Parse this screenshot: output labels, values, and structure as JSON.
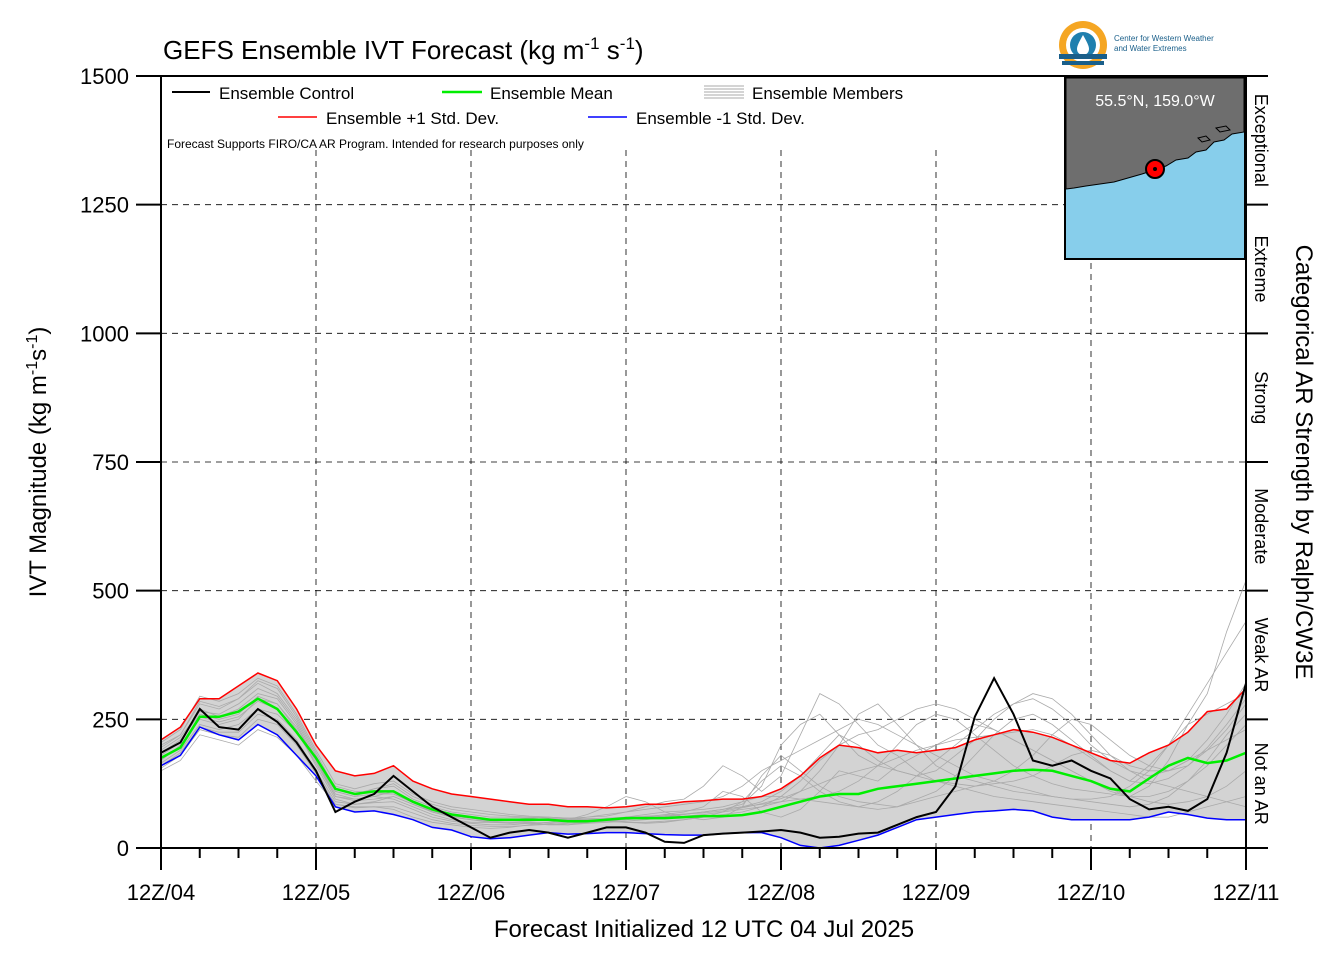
{
  "chart_data": {
    "type": "line",
    "title": "GEFS Ensemble IVT Forecast (kg m",
    "title_sup1": "-1",
    "title_mid": " s",
    "title_sup2": "-1",
    "title_end": ")",
    "ylabel": "IVT Magnitude (kg m",
    "ylabel_sup1": "-1",
    "ylabel_mid": "s",
    "ylabel_sup2": "-1",
    "ylabel_end": ")",
    "xlabel": "Forecast Initialized 12 UTC 04 Jul 2025",
    "right_label": "Categorical AR Strength by Ralph/CW3E",
    "note": "Forecast Supports FIRO/CA AR Program. Intended for research purposes only",
    "ylim": [
      0,
      1500
    ],
    "yticks": [
      0,
      250,
      500,
      750,
      1000,
      1250,
      1500
    ],
    "xlim": [
      0,
      168
    ],
    "xticks": [
      {
        "h": 0,
        "label": "12Z/04"
      },
      {
        "h": 24,
        "label": "12Z/05"
      },
      {
        "h": 48,
        "label": "12Z/06"
      },
      {
        "h": 72,
        "label": "12Z/07"
      },
      {
        "h": 96,
        "label": "12Z/08"
      },
      {
        "h": 120,
        "label": "12Z/09"
      },
      {
        "h": 144,
        "label": "12Z/10"
      },
      {
        "h": 168,
        "label": "12Z/11"
      }
    ],
    "categories_right": [
      {
        "label": "Not an AR",
        "range": [
          0,
          250
        ]
      },
      {
        "label": "Weak AR",
        "range": [
          250,
          500
        ]
      },
      {
        "label": "Moderate",
        "range": [
          500,
          750
        ]
      },
      {
        "label": "Strong",
        "range": [
          750,
          1000
        ]
      },
      {
        "label": "Extreme",
        "range": [
          1000,
          1250
        ]
      },
      {
        "label": "Exceptional",
        "range": [
          1250,
          1500
        ]
      }
    ],
    "legend": {
      "control": "Ensemble Control",
      "mean": "Ensemble Mean",
      "members": "Ensemble Members",
      "plus": "Ensemble +1 Std. Dev.",
      "minus": "Ensemble -1 Std. Dev."
    },
    "colors": {
      "control": "#000000",
      "mean": "#00ee00",
      "members": "#aaaaaa",
      "plus": "#ff0000",
      "minus": "#0000ff",
      "band": "#d3d3d3",
      "ocean": "#87ceeb",
      "land": "#6e6e6e",
      "marker": "#ff0000"
    },
    "location_label": "55.5°N, 159.0°W",
    "logo_text_line1": "Center for Western Weather",
    "logo_text_line2": "and Water Extremes",
    "x": [
      0,
      3,
      6,
      9,
      12,
      15,
      18,
      21,
      24,
      27,
      30,
      33,
      36,
      39,
      42,
      45,
      48,
      51,
      54,
      57,
      60,
      63,
      66,
      69,
      72,
      75,
      78,
      81,
      84,
      87,
      90,
      93,
      96,
      99,
      102,
      105,
      108,
      111,
      114,
      117,
      120,
      123,
      126,
      129,
      132,
      135,
      138,
      141,
      144,
      147,
      150,
      153,
      156,
      159,
      162,
      165,
      168
    ],
    "series": [
      {
        "name": "Ensemble Control",
        "values": [
          185,
          205,
          270,
          235,
          230,
          270,
          245,
          205,
          150,
          70,
          90,
          105,
          140,
          110,
          80,
          60,
          40,
          20,
          30,
          35,
          30,
          20,
          30,
          40,
          40,
          30,
          12,
          10,
          25,
          28,
          30,
          32,
          35,
          30,
          20,
          22,
          28,
          30,
          45,
          60,
          70,
          120,
          255,
          330,
          260,
          170,
          160,
          170,
          150,
          135,
          95,
          75,
          80,
          72,
          95,
          185,
          320
        ]
      },
      {
        "name": "Ensemble Mean",
        "values": [
          175,
          195,
          255,
          255,
          265,
          290,
          270,
          225,
          175,
          115,
          105,
          110,
          110,
          90,
          75,
          65,
          60,
          55,
          55,
          55,
          55,
          52,
          52,
          55,
          58,
          58,
          58,
          60,
          62,
          62,
          64,
          70,
          80,
          90,
          100,
          105,
          105,
          115,
          120,
          125,
          130,
          135,
          140,
          145,
          150,
          152,
          150,
          140,
          130,
          115,
          110,
          135,
          160,
          175,
          165,
          170,
          185
        ]
      },
      {
        "name": "Ensemble +1 Std. Dev.",
        "values": [
          210,
          235,
          290,
          290,
          315,
          340,
          325,
          270,
          200,
          150,
          140,
          145,
          160,
          130,
          115,
          105,
          100,
          95,
          90,
          85,
          85,
          80,
          80,
          78,
          80,
          85,
          85,
          90,
          92,
          95,
          95,
          100,
          115,
          140,
          175,
          200,
          195,
          185,
          190,
          185,
          190,
          195,
          210,
          220,
          230,
          225,
          215,
          200,
          185,
          170,
          165,
          185,
          200,
          225,
          265,
          270,
          310
        ]
      },
      {
        "name": "Ensemble -1 Std. Dev.",
        "values": [
          160,
          180,
          235,
          220,
          210,
          240,
          220,
          180,
          140,
          80,
          70,
          72,
          65,
          55,
          40,
          35,
          22,
          18,
          20,
          25,
          30,
          27,
          28,
          30,
          30,
          28,
          26,
          25,
          25,
          28,
          30,
          30,
          20,
          5,
          0,
          5,
          15,
          25,
          40,
          55,
          60,
          65,
          70,
          72,
          75,
          72,
          60,
          55,
          55,
          55,
          55,
          60,
          70,
          65,
          58,
          55,
          55
        ]
      }
    ],
    "members": [
      {
        "values": [
          165,
          190,
          240,
          230,
          240,
          270,
          260,
          225,
          170,
          100,
          95,
          100,
          95,
          80,
          65,
          55,
          50,
          50,
          48,
          50,
          48,
          45,
          50,
          52,
          55,
          60,
          65,
          70,
          80,
          110,
          100,
          70,
          60,
          75,
          110,
          150,
          140,
          130,
          160,
          180,
          200,
          220,
          240,
          230,
          210,
          190,
          170,
          150,
          130,
          110,
          100,
          120,
          170,
          240,
          300,
          420,
          520
        ]
      },
      {
        "values": [
          200,
          220,
          280,
          270,
          290,
          320,
          300,
          250,
          180,
          110,
          100,
          115,
          120,
          95,
          80,
          70,
          65,
          60,
          60,
          58,
          55,
          55,
          60,
          62,
          70,
          80,
          90,
          95,
          120,
          160,
          140,
          110,
          140,
          220,
          300,
          280,
          240,
          200,
          180,
          150,
          130,
          120,
          110,
          100,
          95,
          90,
          85,
          80,
          75,
          70,
          65,
          60,
          60,
          70,
          80,
          90,
          100
        ]
      },
      {
        "values": [
          150,
          170,
          220,
          210,
          200,
          230,
          215,
          180,
          130,
          85,
          80,
          80,
          75,
          60,
          50,
          45,
          40,
          38,
          40,
          45,
          50,
          55,
          65,
          80,
          100,
          90,
          70,
          60,
          55,
          60,
          80,
          140,
          180,
          150,
          120,
          100,
          90,
          85,
          80,
          95,
          110,
          140,
          180,
          220,
          250,
          260,
          240,
          210,
          180,
          150,
          130,
          160,
          200,
          260,
          320,
          380,
          440
        ]
      },
      {
        "values": [
          190,
          215,
          265,
          260,
          280,
          310,
          295,
          245,
          175,
          120,
          110,
          108,
          105,
          90,
          70,
          60,
          55,
          52,
          50,
          48,
          45,
          45,
          48,
          50,
          52,
          55,
          60,
          65,
          70,
          75,
          85,
          120,
          200,
          240,
          260,
          220,
          180,
          160,
          150,
          140,
          150,
          180,
          210,
          250,
          280,
          300,
          290,
          260,
          220,
          180,
          150,
          130,
          120,
          110,
          100,
          90,
          80
        ]
      },
      {
        "values": [
          170,
          200,
          250,
          240,
          250,
          290,
          280,
          230,
          160,
          95,
          85,
          90,
          100,
          85,
          70,
          60,
          55,
          50,
          50,
          52,
          55,
          58,
          60,
          65,
          70,
          75,
          80,
          85,
          90,
          100,
          120,
          150,
          170,
          190,
          210,
          230,
          250,
          240,
          220,
          200,
          180,
          160,
          140,
          130,
          120,
          110,
          100,
          95,
          90,
          85,
          80,
          85,
          100,
          130,
          170,
          220,
          260
        ]
      },
      {
        "values": [
          180,
          205,
          270,
          255,
          270,
          300,
          290,
          240,
          170,
          105,
          95,
          100,
          110,
          90,
          75,
          62,
          58,
          55,
          55,
          58,
          60,
          58,
          55,
          55,
          56,
          58,
          60,
          62,
          65,
          70,
          75,
          80,
          90,
          110,
          150,
          200,
          260,
          280,
          240,
          200,
          160,
          140,
          130,
          120,
          110,
          105,
          100,
          95,
          95,
          100,
          120,
          150,
          200,
          240,
          260,
          280,
          300
        ]
      },
      {
        "values": [
          160,
          185,
          235,
          225,
          225,
          260,
          250,
          210,
          150,
          90,
          85,
          88,
          90,
          75,
          60,
          52,
          48,
          45,
          45,
          48,
          50,
          50,
          52,
          55,
          60,
          65,
          70,
          72,
          75,
          80,
          90,
          100,
          100,
          95,
          90,
          85,
          80,
          90,
          110,
          140,
          170,
          200,
          230,
          260,
          280,
          290,
          270,
          240,
          200,
          170,
          150,
          140,
          150,
          170,
          190,
          210,
          230
        ]
      },
      {
        "values": [
          205,
          230,
          295,
          285,
          300,
          330,
          315,
          260,
          190,
          125,
          115,
          125,
          130,
          105,
          90,
          80,
          75,
          70,
          65,
          62,
          60,
          58,
          55,
          52,
          50,
          48,
          50,
          55,
          60,
          70,
          90,
          130,
          160,
          140,
          110,
          90,
          80,
          75,
          80,
          90,
          100,
          110,
          120,
          130,
          150,
          180,
          220,
          250,
          240,
          210,
          180,
          160,
          150,
          160,
          190,
          230,
          280
        ]
      },
      {
        "values": [
          175,
          195,
          255,
          245,
          255,
          285,
          270,
          225,
          165,
          100,
          92,
          95,
          100,
          85,
          70,
          62,
          58,
          55,
          55,
          55,
          55,
          55,
          55,
          55,
          58,
          60,
          62,
          65,
          70,
          75,
          80,
          90,
          110,
          140,
          180,
          220,
          200,
          170,
          150,
          140,
          130,
          125,
          120,
          125,
          130,
          140,
          160,
          180,
          190,
          180,
          160,
          150,
          150,
          170,
          210,
          260,
          320
        ]
      },
      {
        "values": [
          155,
          180,
          230,
          220,
          215,
          250,
          240,
          200,
          145,
          85,
          78,
          80,
          80,
          68,
          55,
          48,
          44,
          42,
          42,
          44,
          46,
          48,
          50,
          52,
          55,
          58,
          62,
          66,
          70,
          75,
          80,
          85,
          90,
          95,
          100,
          110,
          130,
          160,
          200,
          240,
          260,
          250,
          220,
          190,
          160,
          140,
          125,
          115,
          110,
          105,
          100,
          100,
          110,
          130,
          160,
          200,
          240
        ]
      },
      {
        "values": [
          195,
          220,
          285,
          275,
          290,
          325,
          310,
          255,
          185,
          115,
          105,
          115,
          125,
          100,
          85,
          75,
          70,
          65,
          62,
          60,
          58,
          56,
          54,
          52,
          50,
          50,
          52,
          55,
          60,
          65,
          70,
          80,
          100,
          130,
          170,
          200,
          220,
          230,
          250,
          270,
          280,
          270,
          250,
          230,
          210,
          190,
          170,
          150,
          130,
          115,
          100,
          90,
          85,
          90,
          100,
          120,
          150
        ]
      },
      {
        "values": [
          185,
          210,
          260,
          250,
          260,
          295,
          280,
          235,
          170,
          110,
          100,
          105,
          105,
          88,
          72,
          63,
          58,
          54,
          53,
          54,
          55,
          56,
          57,
          58,
          60,
          62,
          64,
          66,
          68,
          72,
          78,
          86,
          96,
          110,
          125,
          140,
          150,
          160,
          175,
          190,
          200,
          210,
          215,
          220,
          225,
          230,
          220,
          200,
          175,
          150,
          130,
          125,
          135,
          160,
          195,
          240,
          290
        ]
      }
    ]
  }
}
